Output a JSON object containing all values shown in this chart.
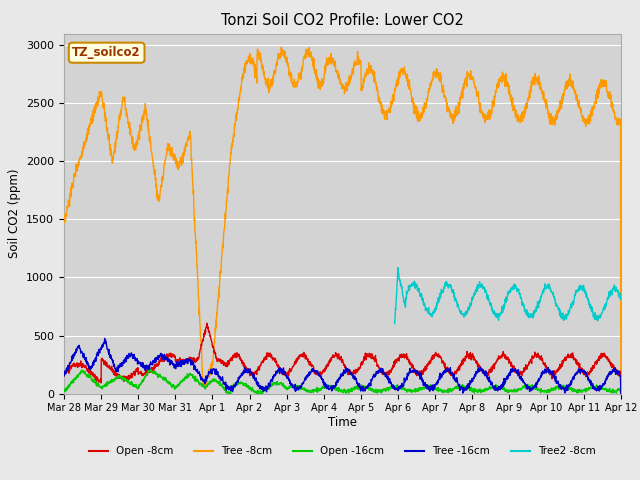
{
  "title": "Tonzi Soil CO2 Profile: Lower CO2",
  "xlabel": "Time",
  "ylabel": "Soil CO2 (ppm)",
  "ylim": [
    0,
    3100
  ],
  "yticks": [
    0,
    500,
    1000,
    1500,
    2000,
    2500,
    3000
  ],
  "xlim": [
    0,
    15
  ],
  "figsize": [
    6.4,
    4.8
  ],
  "dpi": 100,
  "background_color": "#e8e8e8",
  "plot_bg_color": "#d3d3d3",
  "legend_label": "TZ_soilco2",
  "series": {
    "open_8cm": {
      "label": "Open -8cm",
      "color": "#dd0000"
    },
    "tree_8cm": {
      "label": "Tree -8cm",
      "color": "#ff9900"
    },
    "open_16cm": {
      "label": "Open -16cm",
      "color": "#00cc00"
    },
    "tree_16cm": {
      "label": "Tree -16cm",
      "color": "#0000cc"
    },
    "tree2_8cm": {
      "label": "Tree2 -8cm",
      "color": "#00cccc"
    }
  },
  "xtick_labels": [
    "Mar 28",
    "Mar 29",
    "Mar 30",
    "Mar 31",
    "Apr 1",
    "Apr 2",
    "Apr 3",
    "Apr 4",
    "Apr 5",
    "Apr 6",
    "Apr 7",
    "Apr 8",
    "Apr 9",
    "Apr 10",
    "Apr 11",
    "Apr 12"
  ]
}
